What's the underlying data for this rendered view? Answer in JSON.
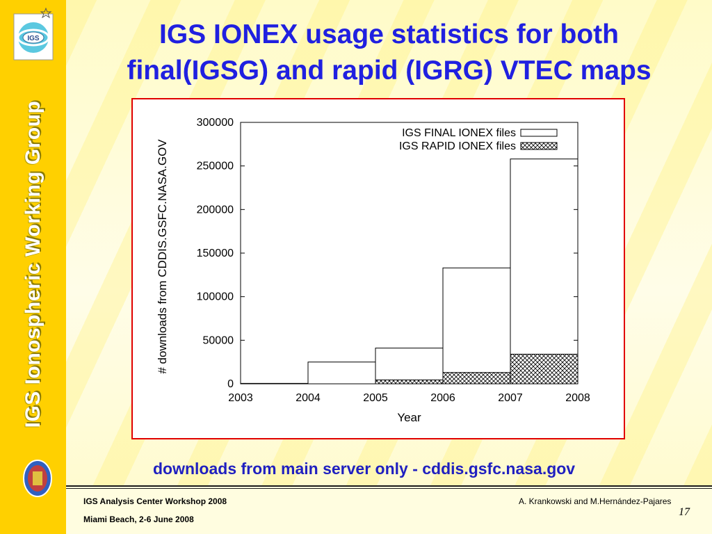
{
  "slide": {
    "title_line1": "IGS IONEX usage statistics for both",
    "title_line2": "final(IGSG) and rapid (IGRG) VTEC maps",
    "side_text": "IGS Ionospheric Working Group",
    "logo_text": "IGS",
    "caption": "downloads from main server only - cddis.gsfc.nasa.gov",
    "footer_left_1": "IGS Analysis Center Workshop 2008",
    "footer_left_2": "Miami Beach, 2-6 June 2008",
    "footer_right": "A. Krankowski and M.Hernández-Pajares",
    "page_number": "17"
  },
  "colors": {
    "title": "#2020e0",
    "side_bar": "#ffd000",
    "frame": "#e00000",
    "caption": "#2020c0"
  },
  "chart_data": {
    "type": "bar",
    "xlabel": "Year",
    "ylabel": "# downloads from CDDIS.GSFC.NASA.GOV",
    "x_ticks": [
      "2003",
      "2004",
      "2005",
      "2006",
      "2007",
      "2008"
    ],
    "y_ticks": [
      "0",
      "50000",
      "100000",
      "150000",
      "200000",
      "250000",
      "300000"
    ],
    "ylim": [
      0,
      300000
    ],
    "xlim": [
      2003,
      2008
    ],
    "legend_position": "top-right",
    "bins": [
      {
        "start": 2003,
        "end": 2004
      },
      {
        "start": 2004,
        "end": 2005
      },
      {
        "start": 2005,
        "end": 2006
      },
      {
        "start": 2006,
        "end": 2007
      },
      {
        "start": 2007,
        "end": 2008
      }
    ],
    "series": [
      {
        "name": "IGS FINAL IONEX files",
        "fill": "white",
        "values": [
          500,
          25000,
          41000,
          133000,
          258000
        ]
      },
      {
        "name": "IGS RAPID IONEX files",
        "fill": "crosshatch",
        "values": [
          0,
          0,
          4500,
          13000,
          34000
        ]
      }
    ],
    "grid": false
  }
}
